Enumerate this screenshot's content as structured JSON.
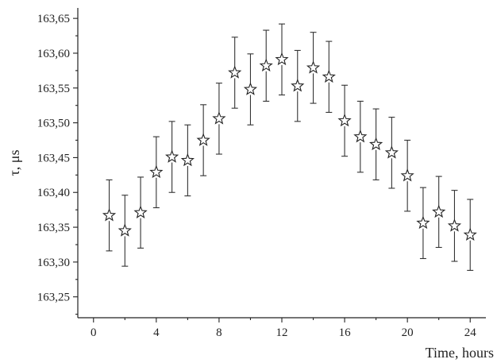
{
  "chart_data": {
    "type": "scatter",
    "title": "",
    "xlabel": "Time, hours",
    "ylabel": "τ, μs",
    "xlim": [
      -1,
      25
    ],
    "ylim": [
      163.22,
      163.665
    ],
    "x_ticks": [
      0,
      4,
      8,
      12,
      16,
      20,
      24
    ],
    "x_tick_labels": [
      "0",
      "4",
      "8",
      "12",
      "16",
      "20",
      "24"
    ],
    "y_ticks": [
      163.25,
      163.3,
      163.35,
      163.4,
      163.45,
      163.5,
      163.55,
      163.6,
      163.65
    ],
    "y_tick_labels": [
      "163,25",
      "163,30",
      "163,35",
      "163,40",
      "163,45",
      "163,50",
      "163,55",
      "163,60",
      "163,65"
    ],
    "grid": false,
    "marker": "star",
    "points": [
      {
        "x": 1,
        "y": 163.367,
        "err": 0.051
      },
      {
        "x": 2,
        "y": 163.345,
        "err": 0.051
      },
      {
        "x": 3,
        "y": 163.371,
        "err": 0.051
      },
      {
        "x": 4,
        "y": 163.429,
        "err": 0.051
      },
      {
        "x": 5,
        "y": 163.451,
        "err": 0.051
      },
      {
        "x": 6,
        "y": 163.446,
        "err": 0.051
      },
      {
        "x": 7,
        "y": 163.475,
        "err": 0.051
      },
      {
        "x": 8,
        "y": 163.506,
        "err": 0.051
      },
      {
        "x": 9,
        "y": 163.572,
        "err": 0.051
      },
      {
        "x": 10,
        "y": 163.548,
        "err": 0.051
      },
      {
        "x": 11,
        "y": 163.582,
        "err": 0.051
      },
      {
        "x": 12,
        "y": 163.591,
        "err": 0.051
      },
      {
        "x": 13,
        "y": 163.553,
        "err": 0.051
      },
      {
        "x": 14,
        "y": 163.579,
        "err": 0.051
      },
      {
        "x": 15,
        "y": 163.566,
        "err": 0.051
      },
      {
        "x": 16,
        "y": 163.503,
        "err": 0.051
      },
      {
        "x": 17,
        "y": 163.48,
        "err": 0.051
      },
      {
        "x": 18,
        "y": 163.469,
        "err": 0.051
      },
      {
        "x": 19,
        "y": 163.457,
        "err": 0.051
      },
      {
        "x": 20,
        "y": 163.424,
        "err": 0.051
      },
      {
        "x": 21,
        "y": 163.356,
        "err": 0.051
      },
      {
        "x": 22,
        "y": 163.372,
        "err": 0.051
      },
      {
        "x": 23,
        "y": 163.352,
        "err": 0.051
      },
      {
        "x": 24,
        "y": 163.339,
        "err": 0.051
      }
    ]
  }
}
